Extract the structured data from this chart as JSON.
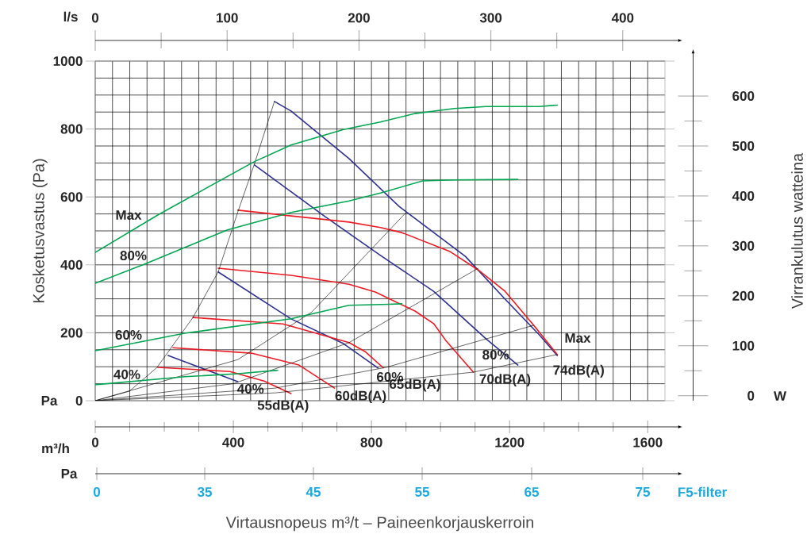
{
  "chart_data": {
    "type": "line",
    "xlabel": "Virtausnopeus m³/t – Paineenkorjauskerroin",
    "ylabel": "Kosketusvastus (Pa)",
    "y2label": "Virrankulutus watteina",
    "x2label": "l/s",
    "annotations": [
      "m³/h",
      "Pa",
      "W",
      "Pa",
      "0",
      "35",
      "45",
      "55",
      "65",
      "75",
      "F5-filter"
    ],
    "xlim": [
      0,
      1650
    ],
    "xticks": [
      0,
      400,
      800,
      1200,
      1600
    ],
    "ylim": [
      0,
      1000
    ],
    "yticks": [
      0,
      200,
      400,
      600,
      800,
      1000
    ],
    "y2lim": [
      -10,
      670
    ],
    "y2ticks": [
      0,
      100,
      200,
      300,
      400,
      500,
      600
    ],
    "x2lim": [
      0,
      432
    ],
    "x2ticks": [
      0,
      100,
      200,
      300,
      400
    ],
    "grid": true,
    "series": [
      {
        "name": "Max",
        "color": "#2e3192",
        "x": [
          519,
          567,
          735,
          880,
          1072,
          1187,
          1286,
          1338
        ],
        "values": [
          881,
          853,
          713,
          572,
          425,
          299,
          194,
          133
        ]
      },
      {
        "name": "80%",
        "color": "#2e3192",
        "x": [
          461,
          666,
          826,
          980,
          1132,
          1224
        ],
        "values": [
          694,
          542,
          428,
          322,
          182,
          105
        ]
      },
      {
        "name": "60%",
        "color": "#2e3192",
        "x": [
          356,
          567,
          719,
          819
        ],
        "values": [
          379,
          241,
          168,
          96
        ]
      },
      {
        "name": "40%",
        "color": "#2e3192",
        "x": [
          211,
          413
        ],
        "values": [
          133,
          56
        ]
      },
      {
        "name": "74dB(A)",
        "color": "#ed1c24",
        "x": [
          413,
          567,
          735,
          826,
          888,
          1026,
          1109,
          1187,
          1270,
          1338
        ],
        "values": [
          561,
          544,
          526,
          510,
          495,
          440,
          385,
          322,
          222,
          136
        ]
      },
      {
        "name": "70dB(A)",
        "color": "#ed1c24",
        "x": [
          356,
          567,
          735,
          811,
          926,
          980,
          1017,
          1095
        ],
        "values": [
          390,
          369,
          343,
          320,
          264,
          227,
          175,
          84
        ]
      },
      {
        "name": "65dB(A)",
        "color": "#ed1c24",
        "x": [
          283,
          544,
          735,
          781,
          834
        ],
        "values": [
          245,
          226,
          171,
          145,
          97
        ]
      },
      {
        "name": "60dB(A)",
        "color": "#ed1c24",
        "x": [
          225,
          452,
          590,
          693
        ],
        "values": [
          156,
          140,
          105,
          37
        ]
      },
      {
        "name": "55dB(A)",
        "color": "#ed1c24",
        "x": [
          181,
          390,
          489,
          567
        ],
        "values": [
          98,
          86,
          58,
          21
        ]
      },
      {
        "name": "Max",
        "color": "#00a651",
        "axis": "y2",
        "x": [
          0,
          184,
          459,
          567,
          719,
          826,
          926,
          1040,
          1132,
          1286,
          1338
        ],
        "values": [
          287,
          363,
          468,
          502,
          533,
          548,
          565,
          575,
          579,
          579,
          582
        ]
      },
      {
        "name": "80%",
        "color": "#00a651",
        "axis": "y2",
        "x": [
          0,
          145,
          383,
          567,
          735,
          826,
          948,
          1040,
          1224
        ],
        "values": [
          225,
          264,
          332,
          367,
          390,
          406,
          430,
          432,
          433
        ]
      },
      {
        "name": "60%",
        "color": "#00a651",
        "axis": "y2",
        "x": [
          0,
          259,
          567,
          735,
          849,
          888
        ],
        "values": [
          90,
          125,
          154,
          181,
          183,
          184
        ]
      },
      {
        "name": "40%",
        "color": "#00a651",
        "axis": "y2",
        "x": [
          0,
          259,
          413,
          528
        ],
        "values": [
          22,
          38,
          44,
          51
        ]
      },
      {
        "color": "#000000",
        "x": [
          0,
          99,
          179,
          283,
          356,
          413,
          461,
          519
        ],
        "values": [
          0,
          28,
          98,
          245,
          379,
          556,
          697,
          881
        ]
      },
      {
        "color": "#000000",
        "x": [
          0,
          413,
          627,
          900
        ],
        "values": [
          0,
          121,
          261,
          554
        ]
      },
      {
        "color": "#000000",
        "x": [
          0,
          400,
          735,
          1109
        ],
        "values": [
          0,
          50,
          171,
          390
        ]
      },
      {
        "color": "#000000",
        "x": [
          0,
          521,
          842,
          1270
        ],
        "values": [
          0,
          37,
          98,
          222
        ]
      },
      {
        "color": "#000000",
        "x": [
          0,
          521,
          1095,
          1338
        ],
        "values": [
          0,
          23,
          84,
          136
        ]
      }
    ]
  }
}
